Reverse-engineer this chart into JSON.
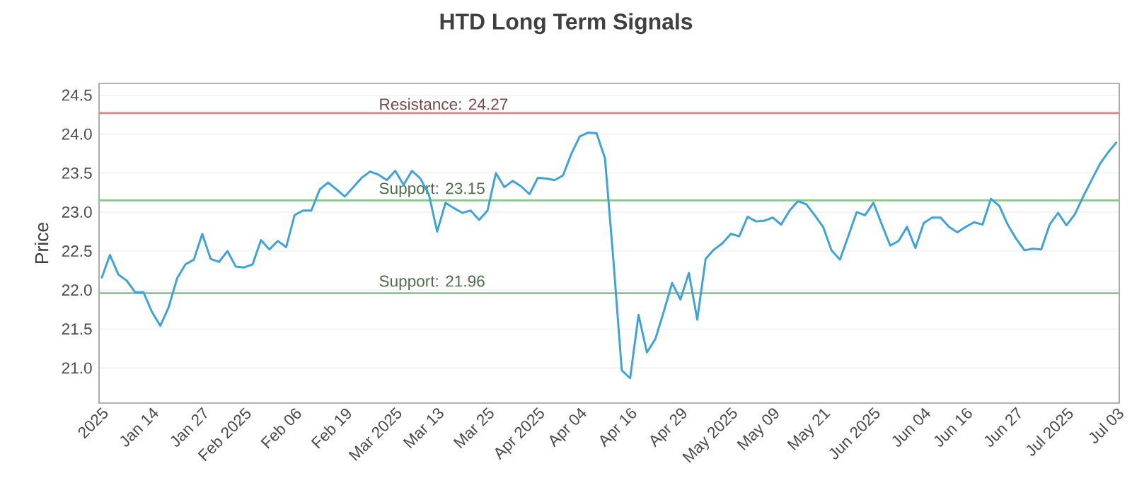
{
  "chart_data": {
    "type": "line",
    "title": "HTD Long Term Signals",
    "ylabel": "Price",
    "categories": [
      "2025",
      null,
      null,
      null,
      null,
      null,
      "Jan 14",
      null,
      null,
      null,
      null,
      null,
      "Jan 27",
      null,
      null,
      null,
      null,
      "Feb 2025",
      null,
      null,
      null,
      null,
      null,
      "Feb 06",
      null,
      null,
      null,
      null,
      null,
      "Feb 19",
      null,
      null,
      null,
      null,
      null,
      "Mar 2025",
      null,
      null,
      null,
      null,
      "Mar 13",
      null,
      null,
      null,
      null,
      null,
      "Mar 25",
      null,
      null,
      null,
      null,
      null,
      "Apr 2025",
      null,
      null,
      null,
      null,
      "Apr 04",
      null,
      null,
      null,
      null,
      null,
      "Apr 16",
      null,
      null,
      null,
      null,
      null,
      "Apr 29",
      null,
      null,
      null,
      null,
      null,
      "May 2025",
      null,
      null,
      null,
      null,
      "May 09",
      null,
      null,
      null,
      null,
      null,
      "May 21",
      null,
      null,
      null,
      null,
      null,
      "Jun 2025",
      null,
      null,
      null,
      null,
      null,
      "Jun 04",
      null,
      null,
      null,
      null,
      "Jun 16",
      null,
      null,
      null,
      null,
      null,
      "Jun 27",
      null,
      null,
      null,
      null,
      null,
      "Jul 2025",
      null,
      null,
      null,
      null,
      null,
      "Jul 03"
    ],
    "series": [
      {
        "color": "#3ba3dc",
        "values": [
          22.15,
          22.45,
          22.2,
          22.12,
          21.97,
          21.97,
          21.72,
          21.54,
          21.78,
          22.15,
          22.33,
          22.39,
          22.72,
          22.4,
          22.36,
          22.5,
          22.3,
          22.29,
          22.33,
          22.64,
          22.52,
          22.63,
          22.55,
          22.96,
          23.02,
          23.02,
          23.29,
          23.38,
          23.29,
          23.2,
          23.32,
          23.44,
          23.52,
          23.48,
          23.41,
          23.53,
          23.35,
          23.53,
          23.43,
          23.23,
          22.75,
          23.12,
          23.05,
          22.99,
          23.02,
          22.9,
          23.02,
          23.5,
          23.32,
          23.4,
          23.33,
          23.23,
          23.44,
          23.43,
          23.41,
          23.47,
          23.75,
          23.97,
          24.02,
          24.01,
          23.69,
          22.39,
          20.97,
          20.87,
          21.68,
          21.2,
          21.37,
          21.72,
          22.09,
          21.88,
          22.22,
          21.62,
          22.4,
          22.52,
          22.6,
          22.72,
          22.69,
          22.94,
          22.88,
          22.89,
          22.93,
          22.84,
          23.02,
          23.14,
          23.1,
          22.96,
          22.81,
          22.51,
          22.39,
          22.69,
          23.0,
          22.96,
          23.12,
          22.84,
          22.57,
          22.63,
          22.81,
          22.54,
          22.86,
          22.93,
          22.93,
          22.81,
          22.74,
          22.81,
          22.87,
          22.84,
          23.17,
          23.08,
          22.84,
          22.66,
          22.51,
          22.53,
          22.52,
          22.84,
          22.99,
          22.83,
          22.97,
          23.2,
          23.41,
          23.62,
          23.77,
          23.9
        ]
      }
    ],
    "ylim": [
      20.55,
      24.65
    ],
    "yticks": [
      {
        "value": 21.0,
        "label": "21.0"
      },
      {
        "value": 21.5,
        "label": "21.5"
      },
      {
        "value": 22.0,
        "label": "22.0"
      },
      {
        "value": 22.5,
        "label": "22.5"
      },
      {
        "value": 23.0,
        "label": "23.0"
      },
      {
        "value": 23.5,
        "label": "23.5"
      },
      {
        "value": 24.0,
        "label": "24.0"
      },
      {
        "value": 24.5,
        "label": "24.5"
      }
    ],
    "grid": "y",
    "marker": "none",
    "line_style": "solid",
    "ref_lines": [
      {
        "axis": "y",
        "value": 24.27,
        "label": "Resistance: 24.27",
        "color": "#d9898b"
      },
      {
        "axis": "y",
        "value": 23.15,
        "label": "Support: 23.15",
        "color": "#8cc68c"
      },
      {
        "axis": "y",
        "value": 21.96,
        "label": "Support: 21.96",
        "color": "#8cc68c"
      }
    ]
  }
}
